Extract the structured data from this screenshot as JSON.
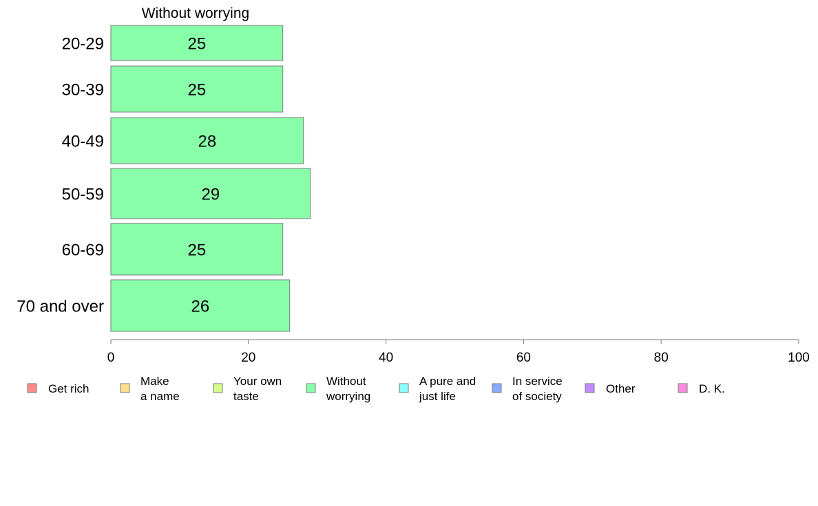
{
  "chart_data": {
    "type": "bar",
    "orientation": "horizontal",
    "title": "Without worrying",
    "categories": [
      "20-29",
      "30-39",
      "40-49",
      "50-59",
      "60-69",
      "70 and over"
    ],
    "series": [
      {
        "name": "Without worrying",
        "color": "#8affaa",
        "values": [
          25,
          25,
          28,
          29,
          25,
          26
        ]
      }
    ],
    "xlim": [
      0,
      100
    ],
    "xticks": [
      0,
      20,
      40,
      60,
      80,
      100
    ],
    "grid": false,
    "legend": {
      "placement": "bottom",
      "items": [
        {
          "lines": [
            "Get rich"
          ],
          "color": "#ff8a8a"
        },
        {
          "lines": [
            "Make",
            "a name"
          ],
          "color": "#ffe08a"
        },
        {
          "lines": [
            "Your own",
            "taste"
          ],
          "color": "#d4ff8a"
        },
        {
          "lines": [
            "Without",
            "worrying"
          ],
          "color": "#8affaa"
        },
        {
          "lines": [
            "A pure and",
            "just life"
          ],
          "color": "#8affff"
        },
        {
          "lines": [
            "In service",
            "of society"
          ],
          "color": "#8aaaff"
        },
        {
          "lines": [
            "Other"
          ],
          "color": "#c08aff"
        },
        {
          "lines": [
            "D. K."
          ],
          "color": "#ff8ae0"
        }
      ]
    }
  }
}
